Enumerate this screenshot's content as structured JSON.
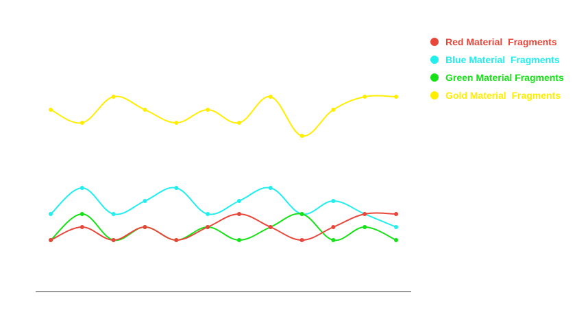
{
  "chart_data": {
    "type": "line",
    "title": "",
    "xlabel": "",
    "ylabel": "",
    "smooth": true,
    "grid": false,
    "legend_position": "right",
    "x": [
      1,
      2,
      3,
      4,
      5,
      6,
      7,
      8,
      9,
      10,
      11,
      12
    ],
    "ylim": [
      0,
      20
    ],
    "series": [
      {
        "name": "Red Material  Fragments",
        "color": "#e8463a",
        "values": [
          4,
          5,
          4,
          5,
          4,
          5,
          6,
          5,
          4,
          5,
          6,
          6
        ]
      },
      {
        "name": "Blue Material  Fragments",
        "color": "#22eeee",
        "values": [
          6,
          8,
          6,
          7,
          8,
          6,
          7,
          8,
          6,
          7,
          6,
          5
        ]
      },
      {
        "name": "Green Material Fragments",
        "color": "#16e016",
        "values": [
          4,
          6,
          4,
          5,
          4,
          5,
          4,
          5,
          6,
          4,
          5,
          4
        ]
      },
      {
        "name": "Gold Material  Fragments",
        "color": "#ffee00",
        "values": [
          14,
          13,
          15,
          14,
          13,
          14,
          13,
          15,
          12,
          14,
          15,
          15
        ]
      }
    ]
  }
}
